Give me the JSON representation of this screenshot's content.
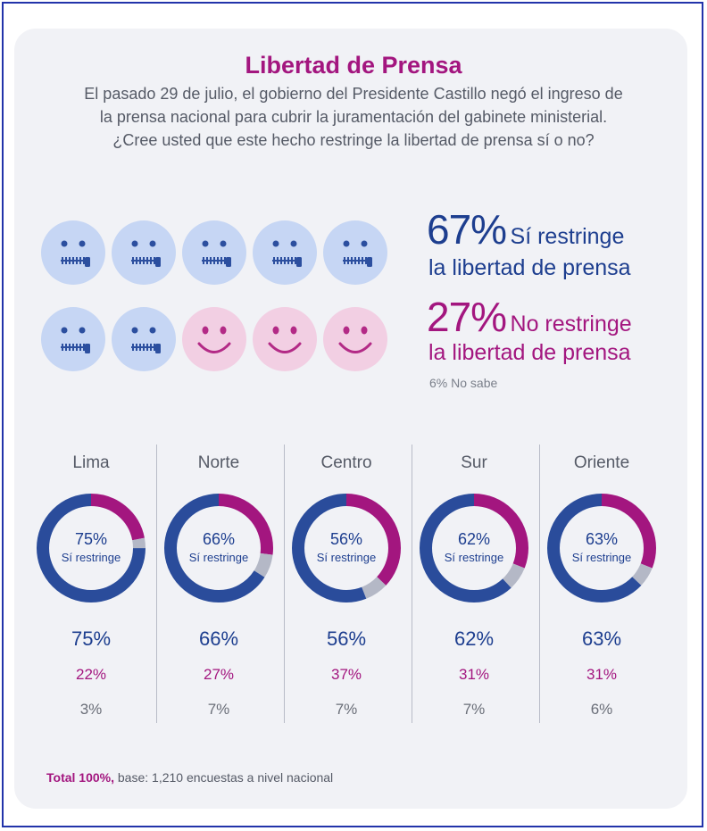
{
  "title": "Libertad de Prensa",
  "question": [
    "El pasado 29 de julio, el gobierno del Presidente Castillo negó el ingreso de",
    "la prensa nacional para cubrir la juramentación del gabinete ministerial.",
    "¿Cree usted que este hecho restringe la libertad de prensa sí o no?"
  ],
  "summary": {
    "si_pct": "67%",
    "si_text1": "Sí restringe",
    "si_text2": "la libertad de prensa",
    "no_pct": "27%",
    "no_text1": "No restringe",
    "no_text2": "la libertad de prensa",
    "nosabe": "6% No sabe"
  },
  "faces": [
    "zipped",
    "zipped",
    "zipped",
    "zipped",
    "zipped",
    "zipped",
    "zipped",
    "smile",
    "smile",
    "smile"
  ],
  "colors": {
    "si": "#2a4c9b",
    "no": "#a3167f",
    "nosabe": "#b4b8c6",
    "face_blue": "#c6d6f4",
    "face_pink": "#f2cfe3"
  },
  "regions": [
    {
      "name": "Lima",
      "si": "75%",
      "no": "22%",
      "ns": "3%",
      "donut_label": "Sí restringe"
    },
    {
      "name": "Norte",
      "si": "66%",
      "no": "27%",
      "ns": "7%",
      "donut_label": "Sí restringe"
    },
    {
      "name": "Centro",
      "si": "56%",
      "no": "37%",
      "ns": "7%",
      "donut_label": "Sí restringe"
    },
    {
      "name": "Sur",
      "si": "62%",
      "no": "31%",
      "ns": "7%",
      "donut_label": "Sí restringe"
    },
    {
      "name": "Oriente",
      "si": "63%",
      "no": "31%",
      "ns": "6%",
      "donut_label": "Sí restringe"
    }
  ],
  "footer": {
    "bold": "Total 100%,",
    "text": " base: 1,210 encuestas a nivel nacional"
  },
  "chart_data": {
    "type": "pie",
    "title": "Libertad de Prensa",
    "categories": [
      "Sí restringe",
      "No restringe",
      "No sabe"
    ],
    "national": [
      67,
      27,
      6
    ],
    "series": [
      {
        "name": "Lima",
        "values": [
          75,
          22,
          3
        ]
      },
      {
        "name": "Norte",
        "values": [
          66,
          27,
          7
        ]
      },
      {
        "name": "Centro",
        "values": [
          56,
          37,
          7
        ]
      },
      {
        "name": "Sur",
        "values": [
          62,
          31,
          7
        ]
      },
      {
        "name": "Oriente",
        "values": [
          63,
          31,
          6
        ]
      }
    ]
  }
}
